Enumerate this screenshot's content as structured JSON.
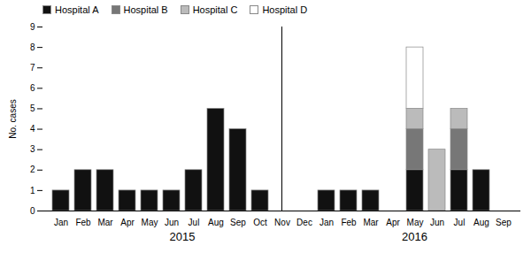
{
  "chart_data": {
    "type": "bar",
    "stacked": true,
    "categories": [
      "Jan",
      "Feb",
      "Mar",
      "Apr",
      "May",
      "Jun",
      "Jul",
      "Aug",
      "Sep",
      "Oct",
      "Nov",
      "Dec",
      "Jan",
      "Feb",
      "Mar",
      "Apr",
      "May",
      "Jun",
      "Jul",
      "Aug",
      "Sep"
    ],
    "series": [
      {
        "name": "Hospital A",
        "color": "#111111",
        "values": [
          1,
          2,
          2,
          1,
          1,
          1,
          2,
          5,
          4,
          1,
          0,
          0,
          1,
          1,
          1,
          0,
          2,
          0,
          2,
          2,
          0
        ]
      },
      {
        "name": "Hospital B",
        "color": "#777777",
        "values": [
          0,
          0,
          0,
          0,
          0,
          0,
          0,
          0,
          0,
          0,
          0,
          0,
          0,
          0,
          0,
          0,
          2,
          0,
          2,
          0,
          0
        ]
      },
      {
        "name": "Hospital C",
        "color": "#bbbbbb",
        "values": [
          0,
          0,
          0,
          0,
          0,
          0,
          0,
          0,
          0,
          0,
          0,
          0,
          0,
          0,
          0,
          0,
          1,
          3,
          1,
          0,
          0
        ]
      },
      {
        "name": "Hospital D",
        "color": "#ffffff",
        "values": [
          0,
          0,
          0,
          0,
          0,
          0,
          0,
          0,
          0,
          0,
          0,
          0,
          0,
          0,
          0,
          0,
          3,
          0,
          0,
          0,
          0
        ]
      }
    ],
    "ylabel": "No. cases",
    "ylim": [
      0,
      9
    ],
    "yticks": [
      0,
      1,
      2,
      3,
      4,
      5,
      6,
      7,
      8,
      9
    ],
    "legend": "upper left",
    "annotations": [
      {
        "text": "2015"
      },
      {
        "text": "2016"
      }
    ]
  }
}
